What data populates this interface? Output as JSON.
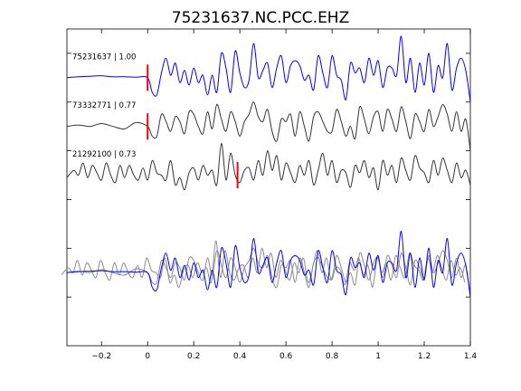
{
  "chart_data": {
    "type": "line",
    "title": "75231637.NC.PCC.EHZ",
    "xlabel": "",
    "ylabel": "",
    "xlim": [
      -0.35,
      1.4
    ],
    "xticks": [
      -0.2,
      0,
      0.2,
      0.4,
      0.6,
      0.8,
      1,
      1.2,
      1.4
    ],
    "xtick_labels": [
      "−0.2",
      "0",
      "0.2",
      "0.4",
      "0.6",
      "0.8",
      "1",
      "1.2",
      "1.4"
    ],
    "ylim": [
      0,
      6.5
    ],
    "grid": false,
    "colors": {
      "reference": "#0000ff",
      "other": "#333333",
      "pick": "#ff0000",
      "overlay_gray": "#8a8a8a"
    },
    "traces": [
      {
        "label": "75231637 | 1.00",
        "baseline": 5.5,
        "color": "#0000ff",
        "pick_time": 0.0,
        "times": [
          -0.35,
          -0.3,
          -0.25,
          -0.2,
          -0.15,
          -0.1,
          -0.05,
          0,
          0.02,
          0.04,
          0.06,
          0.08,
          0.1,
          0.12,
          0.14,
          0.16,
          0.18,
          0.2,
          0.22,
          0.24,
          0.26,
          0.28,
          0.3,
          0.32,
          0.34,
          0.36,
          0.38,
          0.4,
          0.42,
          0.44,
          0.46,
          0.48,
          0.5,
          0.52,
          0.54,
          0.56,
          0.58,
          0.6,
          0.62,
          0.64,
          0.66,
          0.68,
          0.7,
          0.72,
          0.74,
          0.76,
          0.78,
          0.8,
          0.82,
          0.84,
          0.86,
          0.88,
          0.9,
          0.92,
          0.94,
          0.96,
          0.98,
          1,
          1.02,
          1.04,
          1.06,
          1.08,
          1.1,
          1.12,
          1.14,
          1.16,
          1.18,
          1.2,
          1.22,
          1.24,
          1.26,
          1.28,
          1.3,
          1.32,
          1.34,
          1.36,
          1.38,
          1.4
        ],
        "values": [
          0,
          0.02,
          0.03,
          0.04,
          0.02,
          0.02,
          0.01,
          0,
          -0.3,
          -0.35,
          0.1,
          0.4,
          0.05,
          0.3,
          -0.1,
          0.15,
          -0.15,
          0.2,
          -0.1,
          0.05,
          -0.35,
          0.05,
          -0.3,
          0.5,
          0.2,
          -0.3,
          0.55,
          0.1,
          -0.2,
          -0.05,
          0.7,
          0.0,
          0.15,
          0.3,
          -0.2,
          0.2,
          0.45,
          -0.1,
          0.25,
          0.35,
          0.25,
          -0.05,
          0.05,
          -0.25,
          0.45,
          0.1,
          -0.2,
          0.45,
          0.05,
          -0.05,
          -0.45,
          0.3,
          0.1,
          0.2,
          -0.1,
          0.4,
          0.05,
          0.35,
          -0.2,
          0.2,
          0.2,
          0.05,
          0.85,
          -0.1,
          0.4,
          -0.3,
          0.3,
          -0.15,
          0.5,
          -0.3,
          0.25,
          0.0,
          0.7,
          -0.25,
          0.2,
          0.4,
          0.15,
          -0.5
        ]
      },
      {
        "label": "73332771 | 0.77",
        "baseline": 4.5,
        "color": "#333333",
        "pick_time": 0.0,
        "times": [
          -0.35,
          -0.3,
          -0.25,
          -0.2,
          -0.15,
          -0.1,
          -0.05,
          0,
          0.02,
          0.04,
          0.06,
          0.08,
          0.1,
          0.12,
          0.14,
          0.16,
          0.18,
          0.2,
          0.22,
          0.24,
          0.26,
          0.28,
          0.3,
          0.32,
          0.34,
          0.36,
          0.38,
          0.4,
          0.42,
          0.44,
          0.46,
          0.48,
          0.5,
          0.52,
          0.54,
          0.56,
          0.58,
          0.6,
          0.62,
          0.64,
          0.66,
          0.68,
          0.7,
          0.72,
          0.74,
          0.76,
          0.78,
          0.8,
          0.82,
          0.84,
          0.86,
          0.88,
          0.9,
          0.92,
          0.94,
          0.96,
          0.98,
          1,
          1.02,
          1.04,
          1.06,
          1.08,
          1.1,
          1.12,
          1.14,
          1.16,
          1.18,
          1.2,
          1.22,
          1.24,
          1.26,
          1.28,
          1.3,
          1.32,
          1.34,
          1.36,
          1.38,
          1.4
        ],
        "values": [
          0,
          0.03,
          0.0,
          0.06,
          0.0,
          -0.05,
          0.08,
          0,
          -0.2,
          -0.2,
          0.25,
          0.1,
          -0.1,
          0.2,
          0.1,
          -0.15,
          0.3,
          0.25,
          0.0,
          -0.15,
          0.3,
          -0.05,
          0.45,
          0.15,
          -0.1,
          0.3,
          0.1,
          -0.2,
          0.1,
          0.25,
          0.5,
          0.2,
          0.1,
          0.35,
          -0.1,
          -0.3,
          0.15,
          0.1,
          0.25,
          -0.2,
          0.3,
          0.0,
          -0.3,
          0.2,
          0.3,
          0.1,
          -0.1,
          -0.1,
          0.35,
          0.1,
          -0.2,
          0.0,
          -0.25,
          0.4,
          0.15,
          -0.15,
          0.2,
          0.3,
          -0.1,
          0.35,
          0.15,
          -0.1,
          0.4,
          0.1,
          -0.25,
          0.25,
          0.1,
          -0.1,
          0.35,
          0.0,
          0.2,
          0.45,
          0.25,
          -0.1,
          0.3,
          -0.1,
          0.15,
          -0.5
        ]
      },
      {
        "label": "21292100 | 0.73",
        "baseline": 3.5,
        "color": "#333333",
        "pick_time": 0.39,
        "times": [
          -0.35,
          -0.32,
          -0.3,
          -0.28,
          -0.26,
          -0.24,
          -0.22,
          -0.2,
          -0.18,
          -0.16,
          -0.14,
          -0.12,
          -0.1,
          -0.08,
          -0.06,
          -0.04,
          -0.02,
          0,
          0.02,
          0.04,
          0.06,
          0.08,
          0.1,
          0.12,
          0.14,
          0.16,
          0.18,
          0.2,
          0.22,
          0.24,
          0.26,
          0.28,
          0.3,
          0.32,
          0.34,
          0.36,
          0.38,
          0.4,
          0.42,
          0.44,
          0.46,
          0.48,
          0.5,
          0.52,
          0.54,
          0.56,
          0.58,
          0.6,
          0.62,
          0.64,
          0.66,
          0.68,
          0.7,
          0.72,
          0.74,
          0.76,
          0.78,
          0.8,
          0.82,
          0.84,
          0.86,
          0.88,
          0.9,
          0.92,
          0.94,
          0.96,
          0.98,
          1,
          1.02,
          1.04,
          1.06,
          1.08,
          1.1,
          1.12,
          1.14,
          1.16,
          1.18,
          1.2,
          1.22,
          1.24,
          1.26,
          1.28,
          1.3,
          1.32,
          1.34,
          1.36,
          1.38,
          1.4
        ],
        "values": [
          -0.05,
          0.1,
          0.0,
          0.25,
          -0.05,
          0.2,
          0.05,
          -0.1,
          0.25,
          0.0,
          -0.15,
          0.2,
          -0.05,
          0.2,
          0.0,
          -0.1,
          0.15,
          -0.1,
          0.3,
          0.05,
          0.0,
          -0.1,
          0.3,
          -0.2,
          -0.05,
          -0.3,
          0.05,
          0.15,
          -0.1,
          0.2,
          0.0,
          0.1,
          -0.2,
          0.65,
          -0.1,
          0.45,
          0.0,
          -0.15,
          0.1,
          0.15,
          -0.1,
          0.3,
          0.0,
          0.5,
          0.1,
          0.4,
          -0.1,
          0.25,
          0.05,
          -0.15,
          0.2,
          0.0,
          0.3,
          -0.2,
          0.1,
          0.45,
          0.0,
          0.3,
          -0.15,
          0.1,
          0.05,
          -0.25,
          0.2,
          0.05,
          0.3,
          -0.05,
          0.15,
          -0.3,
          0.3,
          0.0,
          0.2,
          -0.15,
          0.35,
          0.1,
          -0.1,
          0.4,
          0.15,
          0.05,
          -0.15,
          0.3,
          0.0,
          0.35,
          0.1,
          -0.15,
          0.25,
          -0.05,
          0.1,
          -0.2
        ]
      }
    ],
    "overlay": {
      "baseline": 1.5,
      "gray_time_shift": 0.06
    }
  }
}
